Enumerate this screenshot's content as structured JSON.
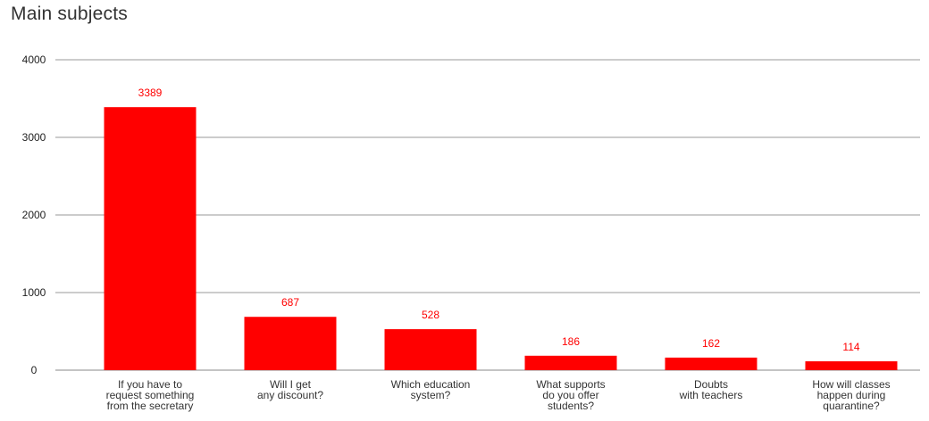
{
  "chart_data": {
    "type": "bar",
    "title": "Main subjects",
    "xlabel": "",
    "ylabel": "",
    "ylim": [
      0,
      4000
    ],
    "yticks": [
      0,
      1000,
      2000,
      3000,
      4000
    ],
    "grid": true,
    "legend": "none",
    "bar_color": "#ff0000",
    "label_color": "#ff0000",
    "categories": [
      [
        "If you have to",
        "request something",
        "from the secretary"
      ],
      [
        "Will I get",
        "any discount?"
      ],
      [
        "Which education",
        "system?"
      ],
      [
        "What supports",
        "do you offer",
        "students?"
      ],
      [
        "Doubts",
        "with teachers"
      ],
      [
        "How will classes",
        "happen during",
        "quarantine?"
      ]
    ],
    "values": [
      3389,
      687,
      528,
      186,
      162,
      114
    ]
  }
}
